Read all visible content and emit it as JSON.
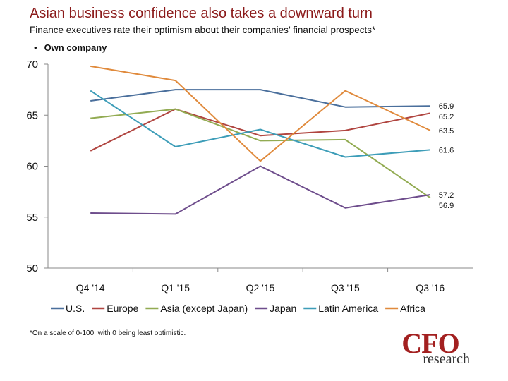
{
  "header": {
    "title": "Asian business confidence also takes a downward turn",
    "subtitle": "Finance executives rate their optimism about their companies’ financial prospects*",
    "bullet_symbol": "•",
    "bullet_label": "Own company"
  },
  "chart_data": {
    "type": "line",
    "title": "",
    "xlabel": "",
    "ylabel": "",
    "categories": [
      "Q4 '14",
      "Q1 '15",
      "Q2 '15",
      "Q3 '15",
      "Q3 '16"
    ],
    "ylim": [
      50,
      70
    ],
    "yticks": [
      50,
      55,
      60,
      65,
      70
    ],
    "grid": false,
    "legend_position": "bottom",
    "series": [
      {
        "name": "U.S.",
        "color": "#4a6f9c",
        "values": [
          66.4,
          67.5,
          67.5,
          65.8,
          65.9
        ],
        "end_label": "65.9"
      },
      {
        "name": "Europe",
        "color": "#b04540",
        "values": [
          61.5,
          65.6,
          63.0,
          63.5,
          65.2
        ],
        "end_label": "65.2"
      },
      {
        "name": "Asia (except Japan)",
        "color": "#92ab52",
        "values": [
          64.7,
          65.6,
          62.5,
          62.6,
          56.9
        ],
        "end_label": "56.9"
      },
      {
        "name": "Japan",
        "color": "#6e4d8c",
        "values": [
          55.4,
          55.3,
          60.0,
          55.9,
          57.2
        ],
        "end_label": "57.2"
      },
      {
        "name": "Latin America",
        "color": "#3d9db8",
        "values": [
          67.4,
          61.9,
          63.6,
          60.9,
          61.6
        ],
        "end_label": "61.6"
      },
      {
        "name": "Africa",
        "color": "#e08a3c",
        "values": [
          69.8,
          68.4,
          60.5,
          67.4,
          63.5
        ],
        "end_label": "63.5"
      }
    ]
  },
  "footnote": "*On a scale of 0-100, with 0 being least optimistic.",
  "logo": {
    "primary": "CFO",
    "secondary": "research",
    "color": "#a32020"
  }
}
